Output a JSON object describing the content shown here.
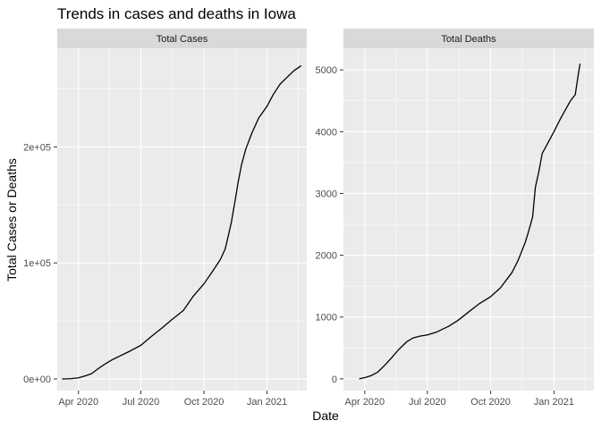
{
  "title": "Trends in cases and deaths in Iowa",
  "xlabel": "Date",
  "ylabel": "Total Cases or Deaths",
  "chart_data": [
    {
      "type": "line",
      "panel": "Total Cases",
      "xlim": [
        "2020-03-01",
        "2021-02-28"
      ],
      "ylim": [
        -10000,
        285000
      ],
      "x_ticks": [
        {
          "date": "2020-04-01",
          "label": "Apr 2020"
        },
        {
          "date": "2020-07-01",
          "label": "Jul 2020"
        },
        {
          "date": "2020-10-01",
          "label": "Oct 2020"
        },
        {
          "date": "2021-01-01",
          "label": "Jan 2021"
        }
      ],
      "y_ticks": [
        {
          "value": 0,
          "label": "0e+00"
        },
        {
          "value": 100000,
          "label": "1e+05"
        },
        {
          "value": 200000,
          "label": "2e+05"
        }
      ],
      "series": [
        {
          "x": [
            "2020-03-08",
            "2020-03-20",
            "2020-04-01",
            "2020-04-10",
            "2020-04-20",
            "2020-04-30",
            "2020-05-10",
            "2020-05-20",
            "2020-06-01",
            "2020-06-15",
            "2020-07-01",
            "2020-07-15",
            "2020-08-01",
            "2020-08-15",
            "2020-09-01",
            "2020-09-15",
            "2020-10-01",
            "2020-10-15",
            "2020-10-25",
            "2020-11-01",
            "2020-11-05",
            "2020-11-10",
            "2020-11-15",
            "2020-11-20",
            "2020-11-25",
            "2020-12-01",
            "2020-12-10",
            "2020-12-20",
            "2021-01-01",
            "2021-01-10",
            "2021-01-20",
            "2021-02-01",
            "2021-02-10",
            "2021-02-20"
          ],
          "y": [
            0,
            200,
            1000,
            2500,
            4500,
            9000,
            13000,
            16500,
            20000,
            24000,
            29000,
            36000,
            44000,
            51000,
            59000,
            71000,
            82000,
            94000,
            103000,
            112000,
            122000,
            135000,
            152000,
            170000,
            185000,
            198000,
            212000,
            225000,
            235000,
            245000,
            254000,
            261000,
            266000,
            270000
          ]
        }
      ]
    },
    {
      "type": "line",
      "panel": "Total Deaths",
      "xlim": [
        "2020-03-01",
        "2021-02-28"
      ],
      "ylim": [
        -190,
        5350
      ],
      "x_ticks": [
        {
          "date": "2020-04-01",
          "label": "Apr 2020"
        },
        {
          "date": "2020-07-01",
          "label": "Jul 2020"
        },
        {
          "date": "2020-10-01",
          "label": "Oct 2020"
        },
        {
          "date": "2021-01-01",
          "label": "Jan 2021"
        }
      ],
      "y_ticks": [
        {
          "value": 0,
          "label": "0"
        },
        {
          "value": 1000,
          "label": "1000"
        },
        {
          "value": 2000,
          "label": "2000"
        },
        {
          "value": 3000,
          "label": "3000"
        },
        {
          "value": 4000,
          "label": "4000"
        },
        {
          "value": 5000,
          "label": "5000"
        }
      ],
      "series": [
        {
          "x": [
            "2020-03-24",
            "2020-04-01",
            "2020-04-10",
            "2020-04-20",
            "2020-05-01",
            "2020-05-10",
            "2020-05-20",
            "2020-06-01",
            "2020-06-10",
            "2020-06-20",
            "2020-07-01",
            "2020-07-15",
            "2020-08-01",
            "2020-08-15",
            "2020-09-01",
            "2020-09-15",
            "2020-10-01",
            "2020-10-15",
            "2020-11-01",
            "2020-11-10",
            "2020-11-20",
            "2020-11-25",
            "2020-12-01",
            "2020-12-05",
            "2020-12-10",
            "2020-12-15",
            "2020-12-20",
            "2021-01-01",
            "2021-01-10",
            "2021-01-20",
            "2021-01-25",
            "2021-02-01",
            "2021-02-05",
            "2021-02-08"
          ],
          "y": [
            0,
            20,
            50,
            110,
            230,
            340,
            470,
            600,
            660,
            690,
            710,
            760,
            850,
            950,
            1100,
            1220,
            1330,
            1470,
            1720,
            1920,
            2200,
            2380,
            2620,
            3100,
            3350,
            3650,
            3750,
            4000,
            4200,
            4400,
            4500,
            4600,
            4900,
            5100
          ]
        }
      ]
    }
  ]
}
